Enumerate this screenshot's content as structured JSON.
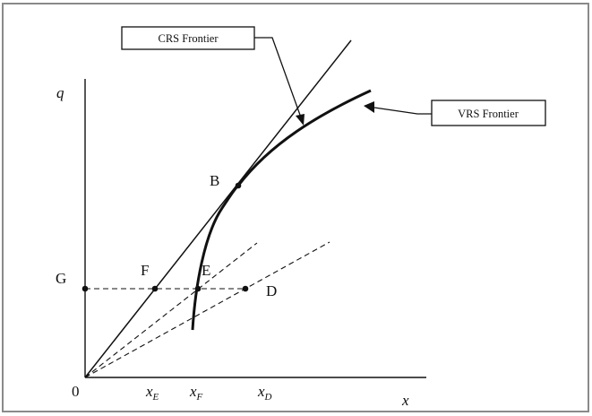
{
  "labels": {
    "y_axis": "q",
    "x_axis": "x",
    "origin": "0",
    "G": "G",
    "F": "F",
    "E": "E",
    "D": "D",
    "B": "B",
    "xE_main": "x",
    "xE_sub": "E",
    "xF_main": "x",
    "xF_sub": "F",
    "xD_main": "x",
    "xD_sub": "D",
    "crs_box": "CRS Frontier",
    "vrs_box": "VRS Frontier"
  },
  "colors": {
    "ink": "#111111",
    "border": "#8a8a8a",
    "background": "#ffffff"
  }
}
